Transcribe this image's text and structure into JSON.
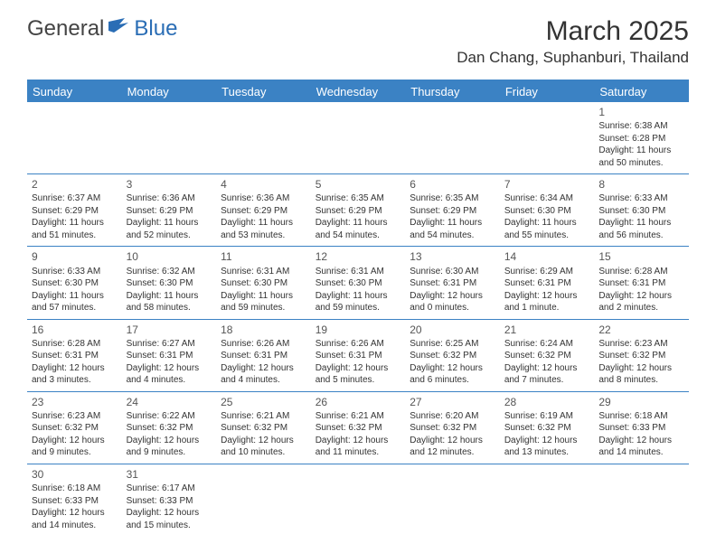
{
  "logo": {
    "general": "General",
    "blue": "Blue"
  },
  "title": "March 2025",
  "location": "Dan Chang, Suphanburi, Thailand",
  "colors": {
    "header_bg": "#3b82c4",
    "header_text": "#ffffff",
    "border": "#3b82c4",
    "daynum": "#555555",
    "body_text": "#333333",
    "logo_gray": "#444444",
    "logo_blue": "#2a6db5"
  },
  "weekdays": [
    "Sunday",
    "Monday",
    "Tuesday",
    "Wednesday",
    "Thursday",
    "Friday",
    "Saturday"
  ],
  "days": [
    {
      "n": 1,
      "sr": "6:38 AM",
      "ss": "6:28 PM",
      "dl": "11 hours and 50 minutes."
    },
    {
      "n": 2,
      "sr": "6:37 AM",
      "ss": "6:29 PM",
      "dl": "11 hours and 51 minutes."
    },
    {
      "n": 3,
      "sr": "6:36 AM",
      "ss": "6:29 PM",
      "dl": "11 hours and 52 minutes."
    },
    {
      "n": 4,
      "sr": "6:36 AM",
      "ss": "6:29 PM",
      "dl": "11 hours and 53 minutes."
    },
    {
      "n": 5,
      "sr": "6:35 AM",
      "ss": "6:29 PM",
      "dl": "11 hours and 54 minutes."
    },
    {
      "n": 6,
      "sr": "6:35 AM",
      "ss": "6:29 PM",
      "dl": "11 hours and 54 minutes."
    },
    {
      "n": 7,
      "sr": "6:34 AM",
      "ss": "6:30 PM",
      "dl": "11 hours and 55 minutes."
    },
    {
      "n": 8,
      "sr": "6:33 AM",
      "ss": "6:30 PM",
      "dl": "11 hours and 56 minutes."
    },
    {
      "n": 9,
      "sr": "6:33 AM",
      "ss": "6:30 PM",
      "dl": "11 hours and 57 minutes."
    },
    {
      "n": 10,
      "sr": "6:32 AM",
      "ss": "6:30 PM",
      "dl": "11 hours and 58 minutes."
    },
    {
      "n": 11,
      "sr": "6:31 AM",
      "ss": "6:30 PM",
      "dl": "11 hours and 59 minutes."
    },
    {
      "n": 12,
      "sr": "6:31 AM",
      "ss": "6:30 PM",
      "dl": "11 hours and 59 minutes."
    },
    {
      "n": 13,
      "sr": "6:30 AM",
      "ss": "6:31 PM",
      "dl": "12 hours and 0 minutes."
    },
    {
      "n": 14,
      "sr": "6:29 AM",
      "ss": "6:31 PM",
      "dl": "12 hours and 1 minute."
    },
    {
      "n": 15,
      "sr": "6:28 AM",
      "ss": "6:31 PM",
      "dl": "12 hours and 2 minutes."
    },
    {
      "n": 16,
      "sr": "6:28 AM",
      "ss": "6:31 PM",
      "dl": "12 hours and 3 minutes."
    },
    {
      "n": 17,
      "sr": "6:27 AM",
      "ss": "6:31 PM",
      "dl": "12 hours and 4 minutes."
    },
    {
      "n": 18,
      "sr": "6:26 AM",
      "ss": "6:31 PM",
      "dl": "12 hours and 4 minutes."
    },
    {
      "n": 19,
      "sr": "6:26 AM",
      "ss": "6:31 PM",
      "dl": "12 hours and 5 minutes."
    },
    {
      "n": 20,
      "sr": "6:25 AM",
      "ss": "6:32 PM",
      "dl": "12 hours and 6 minutes."
    },
    {
      "n": 21,
      "sr": "6:24 AM",
      "ss": "6:32 PM",
      "dl": "12 hours and 7 minutes."
    },
    {
      "n": 22,
      "sr": "6:23 AM",
      "ss": "6:32 PM",
      "dl": "12 hours and 8 minutes."
    },
    {
      "n": 23,
      "sr": "6:23 AM",
      "ss": "6:32 PM",
      "dl": "12 hours and 9 minutes."
    },
    {
      "n": 24,
      "sr": "6:22 AM",
      "ss": "6:32 PM",
      "dl": "12 hours and 9 minutes."
    },
    {
      "n": 25,
      "sr": "6:21 AM",
      "ss": "6:32 PM",
      "dl": "12 hours and 10 minutes."
    },
    {
      "n": 26,
      "sr": "6:21 AM",
      "ss": "6:32 PM",
      "dl": "12 hours and 11 minutes."
    },
    {
      "n": 27,
      "sr": "6:20 AM",
      "ss": "6:32 PM",
      "dl": "12 hours and 12 minutes."
    },
    {
      "n": 28,
      "sr": "6:19 AM",
      "ss": "6:32 PM",
      "dl": "12 hours and 13 minutes."
    },
    {
      "n": 29,
      "sr": "6:18 AM",
      "ss": "6:33 PM",
      "dl": "12 hours and 14 minutes."
    },
    {
      "n": 30,
      "sr": "6:18 AM",
      "ss": "6:33 PM",
      "dl": "12 hours and 14 minutes."
    },
    {
      "n": 31,
      "sr": "6:17 AM",
      "ss": "6:33 PM",
      "dl": "12 hours and 15 minutes."
    }
  ],
  "labels": {
    "sunrise": "Sunrise:",
    "sunset": "Sunset:",
    "daylight": "Daylight:"
  },
  "first_weekday_index": 6
}
